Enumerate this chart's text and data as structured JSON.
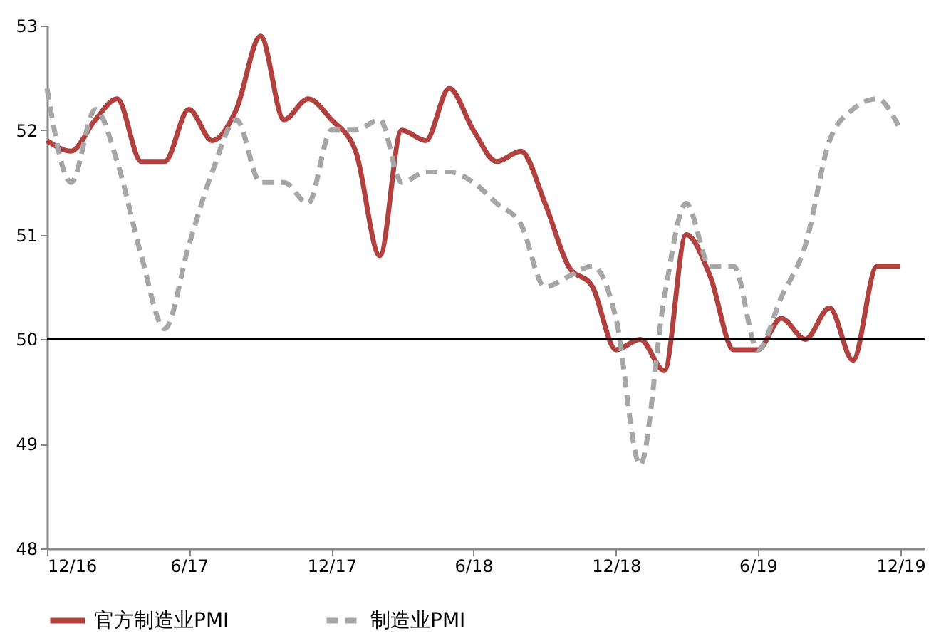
{
  "chart_data": {
    "type": "line",
    "x": [
      "2016-12",
      "2017-01",
      "2017-02",
      "2017-03",
      "2017-04",
      "2017-05",
      "2017-06",
      "2017-07",
      "2017-08",
      "2017-09",
      "2017-10",
      "2017-11",
      "2017-12",
      "2018-01",
      "2018-02",
      "2018-03",
      "2018-04",
      "2018-05",
      "2018-06",
      "2018-07",
      "2018-08",
      "2018-09",
      "2018-10",
      "2018-11",
      "2018-12",
      "2019-01",
      "2019-02",
      "2019-03",
      "2019-04",
      "2019-05",
      "2019-06",
      "2019-07",
      "2019-08",
      "2019-09",
      "2019-10",
      "2019-11",
      "2019-12"
    ],
    "series": [
      {
        "name": "官方制造业PMI",
        "color": "#b0413e",
        "line_style": "solid",
        "values": [
          51.9,
          51.8,
          52.1,
          52.3,
          51.7,
          51.7,
          52.2,
          51.9,
          52.2,
          52.9,
          52.1,
          52.3,
          52.1,
          51.8,
          50.8,
          52.0,
          51.9,
          52.4,
          52.0,
          51.7,
          51.8,
          51.3,
          50.7,
          50.5,
          49.9,
          50.0,
          49.7,
          51.0,
          50.6,
          49.9,
          49.9,
          50.2,
          50.0,
          50.3,
          49.8,
          50.7,
          50.7
        ]
      },
      {
        "name": "制造业PMI",
        "color": "#a6a6a6",
        "line_style": "dashed",
        "values": [
          52.4,
          51.5,
          52.2,
          51.7,
          50.8,
          50.1,
          50.9,
          51.6,
          52.1,
          51.5,
          51.5,
          51.3,
          52.0,
          52.0,
          52.1,
          51.5,
          51.6,
          51.6,
          51.5,
          51.3,
          51.1,
          50.5,
          50.6,
          50.7,
          50.2,
          48.8,
          50.4,
          51.3,
          50.7,
          50.7,
          49.9,
          50.4,
          50.9,
          51.9,
          52.2,
          52.3,
          52.0
        ]
      }
    ],
    "xlim": [
      "2016-12",
      "2020-01"
    ],
    "xticks": [
      {
        "value": "2016-12",
        "label": "12/16"
      },
      {
        "value": "2017-06",
        "label": "6/17"
      },
      {
        "value": "2017-12",
        "label": "12/17"
      },
      {
        "value": "2018-06",
        "label": "6/18"
      },
      {
        "value": "2018-12",
        "label": "12/18"
      },
      {
        "value": "2019-06",
        "label": "6/19"
      },
      {
        "value": "2019-12",
        "label": "12/19"
      }
    ],
    "ylim": [
      48,
      53
    ],
    "yticks": [
      48,
      49,
      50,
      51,
      52,
      53
    ],
    "ref_lines": [
      {
        "axis": "y",
        "value": 50,
        "color": "#000000"
      }
    ],
    "grid": false,
    "legend": "bottom"
  }
}
